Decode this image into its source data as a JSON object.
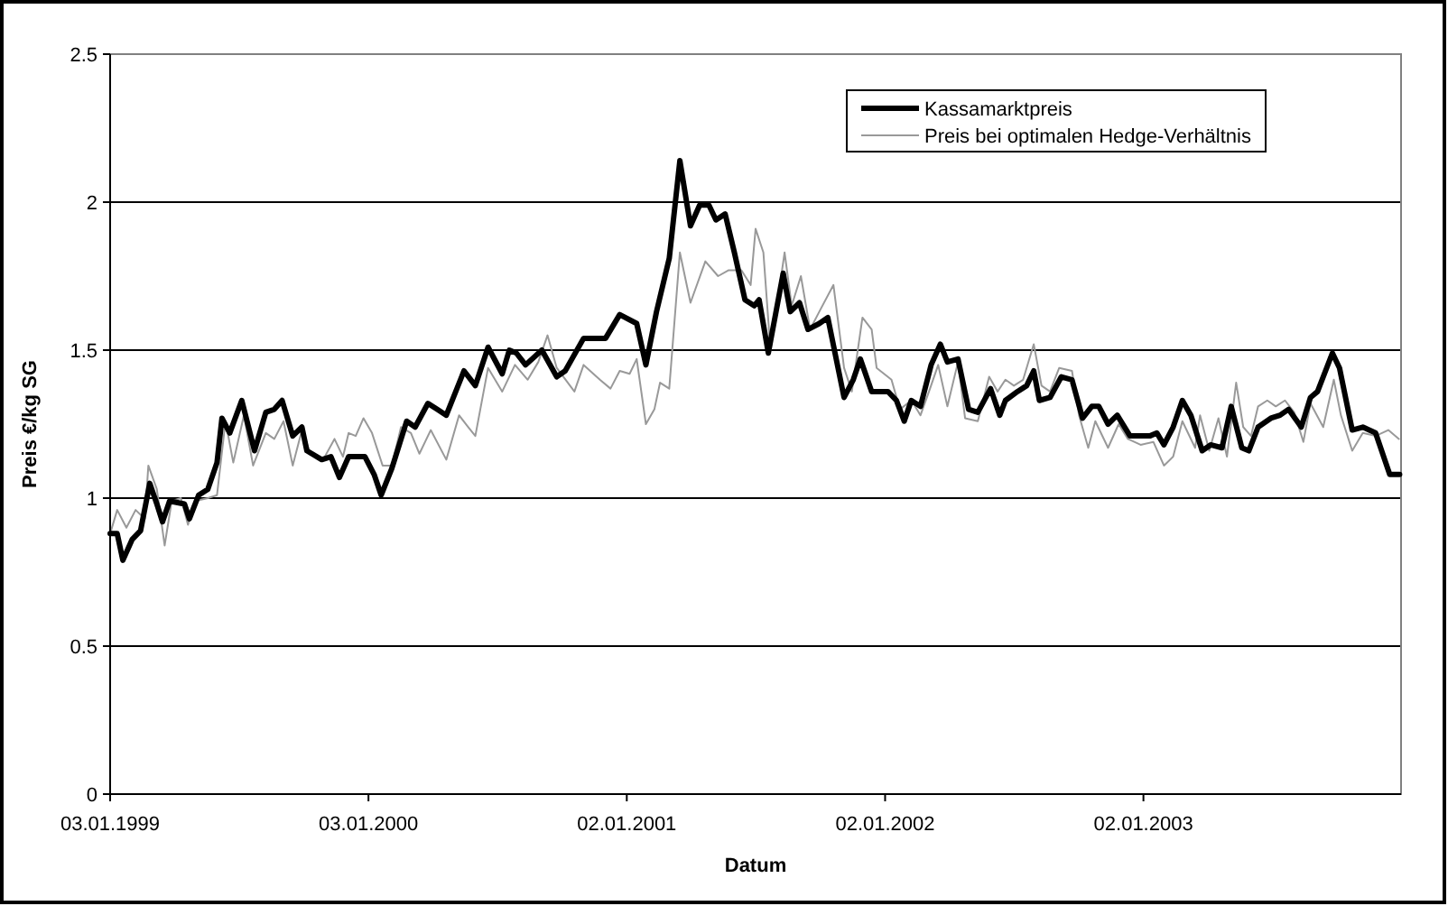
{
  "chart_data": {
    "type": "line",
    "xlabel": "Datum",
    "ylabel": "Preis €/kg SG",
    "xlim": [
      "1999-01-03",
      "2004-01-01"
    ],
    "xticks": [
      {
        "value": "1999-01-03",
        "label": "03.01.1999"
      },
      {
        "value": "2000-01-03",
        "label": "03.01.2000"
      },
      {
        "value": "2001-01-02",
        "label": "02.01.2001"
      },
      {
        "value": "2002-01-02",
        "label": "02.01.2002"
      },
      {
        "value": "2003-01-02",
        "label": "02.01.2003"
      }
    ],
    "ylim": [
      0,
      2.5
    ],
    "yticks": [
      0,
      0.5,
      1,
      1.5,
      2,
      2.5
    ],
    "grid": "y",
    "legend": "top right",
    "series": [
      {
        "name": "Kassamarktpreis",
        "color": "#000000",
        "x": [
          "1999-01-03",
          "1999-01-13",
          "1999-01-21",
          "1999-02-03",
          "1999-02-15",
          "1999-02-28",
          "1999-03-10",
          "1999-03-18",
          "1999-03-28",
          "1999-04-18",
          "1999-04-25",
          "1999-05-08",
          "1999-05-21",
          "1999-06-03",
          "1999-06-10",
          "1999-06-21",
          "1999-07-08",
          "1999-07-26",
          "1999-08-11",
          "1999-08-23",
          "1999-09-03",
          "1999-09-18",
          "1999-10-01",
          "1999-10-08",
          "1999-10-29",
          "1999-11-11",
          "1999-11-23",
          "1999-12-06",
          "1999-12-29",
          "2000-01-11",
          "2000-01-21",
          "2000-02-05",
          "2000-02-26",
          "2000-03-09",
          "2000-03-27",
          "2000-04-09",
          "2000-04-22",
          "2000-05-17",
          "2000-06-02",
          "2000-06-20",
          "2000-07-10",
          "2000-07-20",
          "2000-07-30",
          "2000-08-12",
          "2000-09-04",
          "2000-09-25",
          "2000-10-07",
          "2000-11-02",
          "2000-12-03",
          "2000-12-23",
          "2001-01-16",
          "2001-01-29",
          "2001-02-13",
          "2001-03-03",
          "2001-03-18",
          "2001-04-02",
          "2001-04-15",
          "2001-04-28",
          "2001-05-08",
          "2001-05-21",
          "2001-06-03",
          "2001-06-18",
          "2001-07-01",
          "2001-07-08",
          "2001-07-21",
          "2001-08-11",
          "2001-08-21",
          "2001-09-03",
          "2001-09-15",
          "2001-10-01",
          "2001-10-13",
          "2001-11-05",
          "2001-11-18",
          "2001-11-28",
          "2001-12-14",
          "2002-01-06",
          "2002-01-18",
          "2002-01-29",
          "2002-02-08",
          "2002-02-21",
          "2002-03-08",
          "2002-03-21",
          "2002-03-31",
          "2002-04-15",
          "2002-04-30",
          "2002-05-13",
          "2002-05-31",
          "2002-06-13",
          "2002-06-21",
          "2002-07-08",
          "2002-07-21",
          "2002-07-31",
          "2002-08-08",
          "2002-08-23",
          "2002-09-08",
          "2002-09-23",
          "2002-10-08",
          "2002-10-21",
          "2002-10-31",
          "2002-11-13",
          "2002-11-26",
          "2002-12-14",
          "2003-01-11",
          "2003-01-21",
          "2003-01-31",
          "2003-02-13",
          "2003-02-26",
          "2003-03-10",
          "2003-03-26",
          "2003-04-07",
          "2003-04-23",
          "2003-05-06",
          "2003-05-21",
          "2003-05-31",
          "2003-06-13",
          "2003-07-01",
          "2003-07-14",
          "2003-07-26",
          "2003-08-13",
          "2003-08-26",
          "2003-09-05",
          "2003-09-26",
          "2003-10-06",
          "2003-10-24",
          "2003-11-08",
          "2003-11-26",
          "2003-12-16",
          "2003-12-30"
        ],
        "values": [
          0.88,
          0.88,
          0.79,
          0.86,
          0.89,
          1.05,
          0.98,
          0.92,
          0.99,
          0.98,
          0.93,
          1.01,
          1.03,
          1.12,
          1.27,
          1.22,
          1.33,
          1.16,
          1.29,
          1.3,
          1.33,
          1.21,
          1.24,
          1.16,
          1.13,
          1.14,
          1.07,
          1.14,
          1.14,
          1.08,
          1.01,
          1.1,
          1.26,
          1.24,
          1.32,
          1.3,
          1.28,
          1.43,
          1.38,
          1.51,
          1.42,
          1.5,
          1.49,
          1.45,
          1.5,
          1.41,
          1.43,
          1.54,
          1.54,
          1.62,
          1.59,
          1.45,
          1.63,
          1.81,
          2.14,
          1.92,
          1.99,
          1.99,
          1.94,
          1.96,
          1.83,
          1.67,
          1.65,
          1.67,
          1.49,
          1.76,
          1.63,
          1.66,
          1.57,
          1.59,
          1.61,
          1.34,
          1.4,
          1.47,
          1.36,
          1.36,
          1.33,
          1.26,
          1.33,
          1.31,
          1.45,
          1.52,
          1.46,
          1.47,
          1.3,
          1.29,
          1.37,
          1.28,
          1.33,
          1.36,
          1.38,
          1.43,
          1.33,
          1.34,
          1.41,
          1.4,
          1.27,
          1.31,
          1.31,
          1.25,
          1.28,
          1.21,
          1.21,
          1.22,
          1.18,
          1.24,
          1.33,
          1.28,
          1.16,
          1.18,
          1.17,
          1.31,
          1.17,
          1.16,
          1.24,
          1.27,
          1.28,
          1.3,
          1.24,
          1.34,
          1.36,
          1.49,
          1.44,
          1.23,
          1.24,
          1.22,
          1.08,
          1.08
        ]
      },
      {
        "name": "Preis bei optimalen Hedge-Verhältnis",
        "color": "#999999",
        "x": [
          "1999-01-03",
          "1999-01-13",
          "1999-01-26",
          "1999-02-08",
          "1999-02-21",
          "1999-02-26",
          "1999-03-10",
          "1999-03-21",
          "1999-03-31",
          "1999-04-13",
          "1999-04-23",
          "1999-05-03",
          "1999-05-21",
          "1999-06-03",
          "1999-06-15",
          "1999-06-26",
          "1999-07-11",
          "1999-07-24",
          "1999-08-11",
          "1999-08-23",
          "1999-09-05",
          "1999-09-18",
          "1999-10-01",
          "1999-10-13",
          "1999-10-31",
          "1999-11-16",
          "1999-11-28",
          "1999-12-06",
          "1999-12-16",
          "1999-12-27",
          "2000-01-08",
          "2000-01-23",
          "2000-02-05",
          "2000-02-18",
          "2000-03-03",
          "2000-03-15",
          "2000-03-31",
          "2000-04-22",
          "2000-05-10",
          "2000-05-23",
          "2000-06-02",
          "2000-06-20",
          "2000-07-10",
          "2000-07-28",
          "2000-08-15",
          "2000-08-30",
          "2000-09-12",
          "2000-09-25",
          "2000-10-20",
          "2000-11-02",
          "2000-11-25",
          "2000-12-10",
          "2000-12-23",
          "2001-01-06",
          "2001-01-16",
          "2001-01-29",
          "2001-02-10",
          "2001-02-18",
          "2001-03-03",
          "2001-03-18",
          "2001-04-02",
          "2001-04-23",
          "2001-05-11",
          "2001-05-26",
          "2001-06-13",
          "2001-06-26",
          "2001-07-03",
          "2001-07-14",
          "2001-07-24",
          "2001-08-13",
          "2001-08-23",
          "2001-09-05",
          "2001-09-18",
          "2001-10-01",
          "2001-10-21",
          "2001-11-05",
          "2001-11-16",
          "2001-12-01",
          "2001-12-14",
          "2001-12-21",
          "2002-01-11",
          "2002-01-23",
          "2002-02-08",
          "2002-02-21",
          "2002-03-05",
          "2002-03-18",
          "2002-03-31",
          "2002-04-15",
          "2002-04-25",
          "2002-05-13",
          "2002-05-29",
          "2002-06-10",
          "2002-06-21",
          "2002-07-03",
          "2002-07-16",
          "2002-07-31",
          "2002-08-11",
          "2002-08-23",
          "2002-09-05",
          "2002-09-23",
          "2002-10-03",
          "2002-10-16",
          "2002-10-26",
          "2002-11-13",
          "2002-11-28",
          "2002-12-11",
          "2002-12-29",
          "2003-01-16",
          "2003-01-31",
          "2003-02-13",
          "2003-02-26",
          "2003-03-16",
          "2003-03-23",
          "2003-04-05",
          "2003-04-18",
          "2003-04-30",
          "2003-05-13",
          "2003-05-23",
          "2003-06-03",
          "2003-06-13",
          "2003-06-26",
          "2003-07-08",
          "2003-07-21",
          "2003-08-03",
          "2003-08-16",
          "2003-08-26",
          "2003-09-13",
          "2003-09-28",
          "2003-10-08",
          "2003-10-24",
          "2003-11-08",
          "2003-11-26",
          "2003-12-14",
          "2003-12-29"
        ],
        "values": [
          0.88,
          0.96,
          0.9,
          0.96,
          0.93,
          1.11,
          1.03,
          0.84,
          0.99,
          1.0,
          0.91,
          0.99,
          1.0,
          1.01,
          1.26,
          1.12,
          1.28,
          1.11,
          1.22,
          1.2,
          1.26,
          1.11,
          1.23,
          1.15,
          1.13,
          1.2,
          1.14,
          1.22,
          1.21,
          1.27,
          1.22,
          1.11,
          1.11,
          1.24,
          1.22,
          1.15,
          1.23,
          1.13,
          1.28,
          1.24,
          1.21,
          1.44,
          1.36,
          1.45,
          1.4,
          1.46,
          1.55,
          1.44,
          1.36,
          1.45,
          1.4,
          1.37,
          1.43,
          1.42,
          1.47,
          1.25,
          1.3,
          1.39,
          1.37,
          1.83,
          1.66,
          1.8,
          1.75,
          1.77,
          1.77,
          1.72,
          1.91,
          1.83,
          1.5,
          1.83,
          1.65,
          1.75,
          1.57,
          1.63,
          1.72,
          1.44,
          1.36,
          1.61,
          1.57,
          1.44,
          1.4,
          1.3,
          1.33,
          1.28,
          1.36,
          1.45,
          1.31,
          1.46,
          1.27,
          1.26,
          1.41,
          1.36,
          1.4,
          1.38,
          1.4,
          1.52,
          1.38,
          1.36,
          1.44,
          1.43,
          1.28,
          1.17,
          1.26,
          1.17,
          1.25,
          1.2,
          1.18,
          1.19,
          1.11,
          1.14,
          1.26,
          1.17,
          1.28,
          1.16,
          1.27,
          1.14,
          1.39,
          1.24,
          1.21,
          1.31,
          1.33,
          1.31,
          1.33,
          1.29,
          1.19,
          1.32,
          1.24,
          1.4,
          1.28,
          1.16,
          1.22,
          1.21,
          1.23,
          1.2
        ]
      }
    ]
  }
}
